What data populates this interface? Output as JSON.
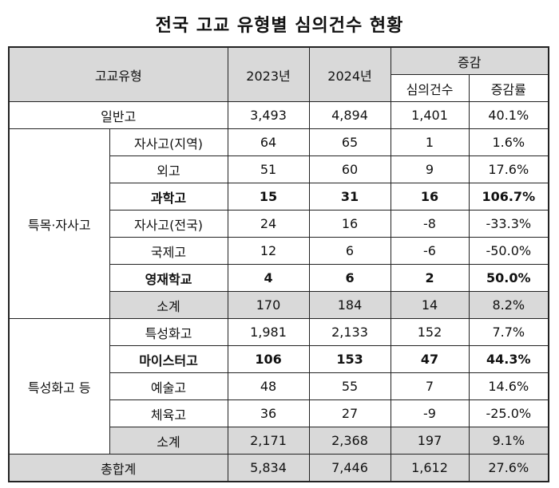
{
  "title": "전국 고교 유형별 심의건수 현황",
  "header": {
    "type": "고교유형",
    "y2023": "2023년",
    "y2024": "2024년",
    "change": "증감",
    "count": "심의건수",
    "rate": "증감률"
  },
  "general": {
    "label": "일반고",
    "y2023": "3,493",
    "y2024": "4,894",
    "count": "1,401",
    "rate": "40.1%"
  },
  "special": {
    "group": "특목·자사고",
    "rows": [
      {
        "label": "자사고(지역)",
        "y2023": "64",
        "y2024": "65",
        "count": "1",
        "rate": "1.6%",
        "bold": false
      },
      {
        "label": "외고",
        "y2023": "51",
        "y2024": "60",
        "count": "9",
        "rate": "17.6%",
        "bold": false
      },
      {
        "label": "과학고",
        "y2023": "15",
        "y2024": "31",
        "count": "16",
        "rate": "106.7%",
        "bold": true
      },
      {
        "label": "자사고(전국)",
        "y2023": "24",
        "y2024": "16",
        "count": "-8",
        "rate": "-33.3%",
        "bold": false
      },
      {
        "label": "국제고",
        "y2023": "12",
        "y2024": "6",
        "count": "-6",
        "rate": "-50.0%",
        "bold": false
      },
      {
        "label": "영재학교",
        "y2023": "4",
        "y2024": "6",
        "count": "2",
        "rate": "50.0%",
        "bold": true
      }
    ],
    "subtotal": {
      "label": "소계",
      "y2023": "170",
      "y2024": "184",
      "count": "14",
      "rate": "8.2%"
    }
  },
  "characterized": {
    "group": "특성화고 등",
    "rows": [
      {
        "label": "특성화고",
        "y2023": "1,981",
        "y2024": "2,133",
        "count": "152",
        "rate": "7.7%",
        "bold": false
      },
      {
        "label": "마이스터고",
        "y2023": "106",
        "y2024": "153",
        "count": "47",
        "rate": "44.3%",
        "bold": true
      },
      {
        "label": "예술고",
        "y2023": "48",
        "y2024": "55",
        "count": "7",
        "rate": "14.6%",
        "bold": false
      },
      {
        "label": "체육고",
        "y2023": "36",
        "y2024": "27",
        "count": "-9",
        "rate": "-25.0%",
        "bold": false
      }
    ],
    "subtotal": {
      "label": "소계",
      "y2023": "2,171",
      "y2024": "2,368",
      "count": "197",
      "rate": "9.1%"
    }
  },
  "total": {
    "label": "총합계",
    "y2023": "5,834",
    "y2024": "7,446",
    "count": "1,612",
    "rate": "27.6%"
  }
}
